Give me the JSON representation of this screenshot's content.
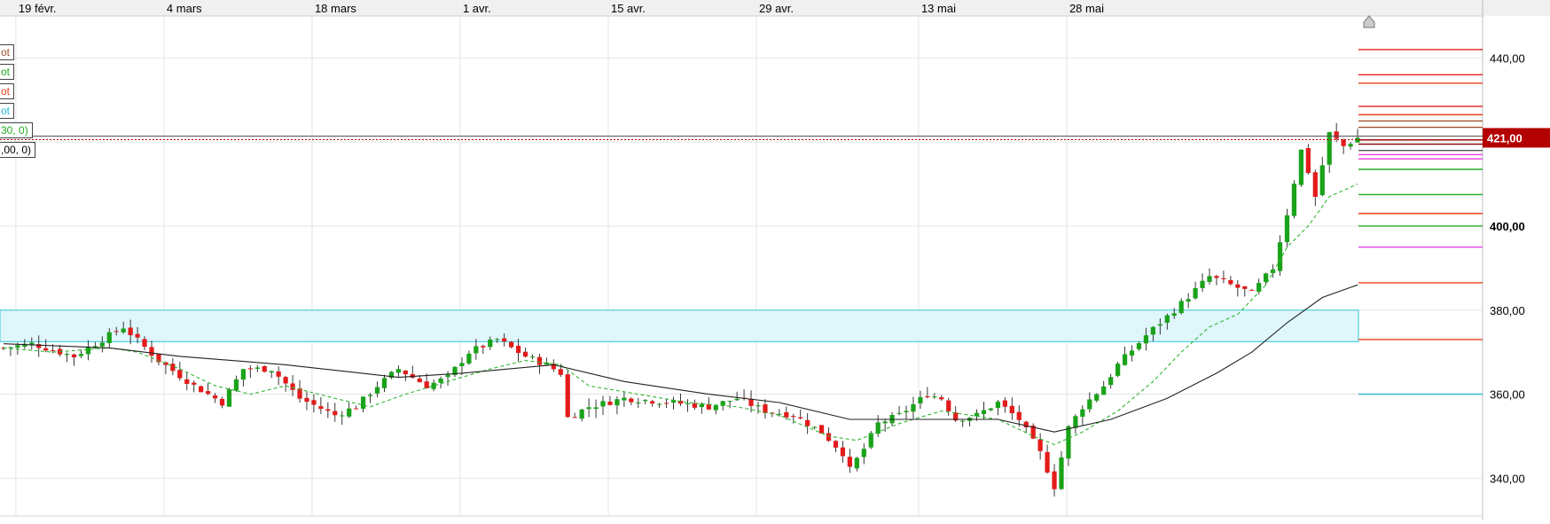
{
  "chart_data": {
    "type": "candlestick",
    "x_ticks": [
      "19 févr.",
      "4 mars",
      "18 mars",
      "1 avr.",
      "15 avr.",
      "29 avr.",
      "13 mai",
      "28 mai"
    ],
    "y_ticks": [
      "440,00",
      "400,00",
      "380,00",
      "360,00",
      "340,00"
    ],
    "y_range": [
      331,
      450
    ],
    "last_price_label": "421,00",
    "last_price": 421,
    "legend": [
      {
        "text": "ot",
        "color": "#a0522d"
      },
      {
        "text": "ot",
        "color": "#22aa22"
      },
      {
        "text": "ot",
        "color": "#e8401c"
      },
      {
        "text": "ot",
        "color": "#22b8d0"
      },
      {
        "text": "30, 0)",
        "color": "#22aa22"
      },
      {
        "text": ",00, 0)",
        "color": "#000000"
      }
    ],
    "zone": {
      "low": 372.5,
      "high": 380
    },
    "pivot_levels": [
      {
        "value": 442,
        "color": "#e02020"
      },
      {
        "value": 436,
        "color": "#e02020"
      },
      {
        "value": 434,
        "color": "#e8401c"
      },
      {
        "value": 428.5,
        "color": "#e02020"
      },
      {
        "value": 426.5,
        "color": "#e8401c"
      },
      {
        "value": 425,
        "color": "#a0522d"
      },
      {
        "value": 423.5,
        "color": "#a0522d"
      },
      {
        "value": 420.5,
        "color": "#8b0000"
      },
      {
        "value": 419.5,
        "color": "#8b0000"
      },
      {
        "value": 418,
        "color": "#555555"
      },
      {
        "value": 417,
        "color": "#e040e0"
      },
      {
        "value": 416,
        "color": "#e040e0"
      },
      {
        "value": 413.5,
        "color": "#22aa22"
      },
      {
        "value": 407.5,
        "color": "#22aa22"
      },
      {
        "value": 403,
        "color": "#e8401c"
      },
      {
        "value": 400,
        "color": "#22aa22"
      },
      {
        "value": 395,
        "color": "#e040e0"
      },
      {
        "value": 386.5,
        "color": "#e8401c"
      },
      {
        "value": 373,
        "color": "#e8401c"
      },
      {
        "value": 360,
        "color": "#22b8d0"
      }
    ],
    "close_path": [
      [
        371,
        0
      ],
      [
        372,
        4
      ],
      [
        369,
        10
      ],
      [
        373,
        14
      ],
      [
        376,
        17
      ],
      [
        368,
        22
      ],
      [
        362,
        27
      ],
      [
        358,
        31
      ],
      [
        366,
        34
      ],
      [
        366,
        38
      ],
      [
        359,
        42
      ],
      [
        355,
        47
      ],
      [
        357,
        50
      ],
      [
        362,
        53
      ],
      [
        366,
        56
      ],
      [
        362,
        60
      ],
      [
        364,
        63
      ],
      [
        370,
        66
      ],
      [
        373,
        70
      ],
      [
        369,
        74
      ],
      [
        367,
        77
      ],
      [
        365,
        79
      ],
      [
        354,
        79.5
      ],
      [
        357,
        83
      ],
      [
        359,
        88
      ],
      [
        358,
        95
      ],
      [
        357,
        100
      ],
      [
        359,
        104
      ],
      [
        356,
        108
      ],
      [
        355,
        112
      ],
      [
        351,
        116
      ],
      [
        346,
        119
      ],
      [
        342,
        120
      ],
      [
        347,
        122
      ],
      [
        353,
        124
      ],
      [
        355,
        127
      ],
      [
        360,
        131
      ],
      [
        359,
        133
      ],
      [
        354,
        135
      ],
      [
        355,
        138
      ],
      [
        358,
        141
      ],
      [
        354,
        144
      ],
      [
        346,
        147
      ],
      [
        338,
        149
      ],
      [
        352,
        151
      ],
      [
        357,
        153
      ],
      [
        362,
        156
      ],
      [
        367,
        158
      ],
      [
        374,
        162
      ],
      [
        380,
        166
      ],
      [
        388,
        171
      ],
      [
        386,
        174
      ],
      [
        384,
        177
      ],
      [
        390,
        180
      ],
      [
        403,
        182
      ],
      [
        418,
        184
      ],
      [
        413,
        185
      ],
      [
        407,
        186
      ],
      [
        422,
        188
      ],
      [
        419,
        190
      ],
      [
        421,
        192
      ]
    ],
    "ema_path": [
      [
        371,
        0
      ],
      [
        370,
        7
      ],
      [
        371,
        15
      ],
      [
        370,
        19
      ],
      [
        366,
        25
      ],
      [
        362,
        30
      ],
      [
        360,
        35
      ],
      [
        362,
        40
      ],
      [
        359,
        47
      ],
      [
        357,
        52
      ],
      [
        360,
        57
      ],
      [
        363,
        63
      ],
      [
        366,
        69
      ],
      [
        368,
        74
      ],
      [
        367,
        79
      ],
      [
        362,
        83
      ],
      [
        360,
        90
      ],
      [
        358,
        97
      ],
      [
        357,
        104
      ],
      [
        355,
        110
      ],
      [
        350,
        117
      ],
      [
        349,
        121
      ],
      [
        353,
        127
      ],
      [
        356,
        133
      ],
      [
        354,
        141
      ],
      [
        350,
        146
      ],
      [
        348,
        149
      ],
      [
        351,
        153
      ],
      [
        356,
        158
      ],
      [
        363,
        163
      ],
      [
        370,
        167
      ],
      [
        376,
        171
      ],
      [
        379,
        175
      ],
      [
        386,
        179
      ],
      [
        395,
        182
      ],
      [
        400,
        185
      ],
      [
        407,
        188
      ],
      [
        410,
        192
      ]
    ],
    "sma_path": [
      [
        372,
        0
      ],
      [
        371,
        15
      ],
      [
        369,
        25
      ],
      [
        367,
        40
      ],
      [
        364,
        56
      ],
      [
        365,
        65
      ],
      [
        367,
        78
      ],
      [
        363,
        88
      ],
      [
        360,
        100
      ],
      [
        358,
        110
      ],
      [
        354,
        120
      ],
      [
        354,
        131
      ],
      [
        354,
        141
      ],
      [
        351,
        149
      ],
      [
        354,
        157
      ],
      [
        359,
        165
      ],
      [
        365,
        172
      ],
      [
        370,
        177
      ],
      [
        377,
        182
      ],
      [
        383,
        187
      ],
      [
        386,
        192
      ]
    ]
  }
}
